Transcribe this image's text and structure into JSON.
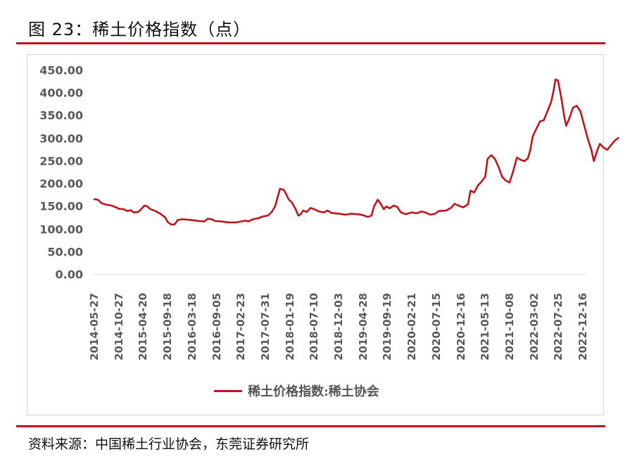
{
  "header": {
    "title": "图 23：稀土价格指数（点）"
  },
  "footer": {
    "source": "资料来源：中国稀土行业协会，东莞证券研究所"
  },
  "colors": {
    "accent_rule": "#c0141c",
    "series_line": "#c0141c",
    "axis_text": "#595959",
    "frame_border": "#d6d6d6"
  },
  "chart_data": {
    "type": "line",
    "title": "图 23：稀土价格指数（点）",
    "xlabel": "",
    "ylabel": "",
    "ylim": [
      0,
      450
    ],
    "grid": false,
    "legend_position": "bottom",
    "y_ticks": [
      "0.00",
      "50.00",
      "100.00",
      "150.00",
      "200.00",
      "250.00",
      "300.00",
      "350.00",
      "400.00",
      "450.00"
    ],
    "x_tick_labels": [
      "2014-05-27",
      "2014-10-27",
      "2015-04-20",
      "2015-09-18",
      "2016-03-18",
      "2016-09-05",
      "2017-02-23",
      "2017-07-31",
      "2018-01-19",
      "2018-07-10",
      "2018-12-03",
      "2019-04-28",
      "2019-09-19",
      "2020-02-21",
      "2020-07-15",
      "2020-12-16",
      "2021-05-13",
      "2021-10-08",
      "2022-03-02",
      "2022-07-25",
      "2022-12-16"
    ],
    "series": [
      {
        "name": "稀土价格指数:稀土协会",
        "color": "#c0141c",
        "points": [
          {
            "x": 0.0,
            "y": 166
          },
          {
            "x": 0.15,
            "y": 165
          },
          {
            "x": 0.3,
            "y": 157
          },
          {
            "x": 0.5,
            "y": 154
          },
          {
            "x": 0.7,
            "y": 152
          },
          {
            "x": 0.9,
            "y": 148
          },
          {
            "x": 1.0,
            "y": 145
          },
          {
            "x": 1.2,
            "y": 144
          },
          {
            "x": 1.35,
            "y": 140
          },
          {
            "x": 1.5,
            "y": 142
          },
          {
            "x": 1.6,
            "y": 137
          },
          {
            "x": 1.8,
            "y": 138
          },
          {
            "x": 1.95,
            "y": 146
          },
          {
            "x": 2.05,
            "y": 152
          },
          {
            "x": 2.15,
            "y": 151
          },
          {
            "x": 2.3,
            "y": 144
          },
          {
            "x": 2.5,
            "y": 140
          },
          {
            "x": 2.7,
            "y": 134
          },
          {
            "x": 2.9,
            "y": 126
          },
          {
            "x": 3.0,
            "y": 116
          },
          {
            "x": 3.15,
            "y": 110
          },
          {
            "x": 3.3,
            "y": 111
          },
          {
            "x": 3.4,
            "y": 120
          },
          {
            "x": 3.6,
            "y": 122
          },
          {
            "x": 3.8,
            "y": 121
          },
          {
            "x": 4.0,
            "y": 120
          },
          {
            "x": 4.3,
            "y": 118
          },
          {
            "x": 4.5,
            "y": 117
          },
          {
            "x": 4.65,
            "y": 123
          },
          {
            "x": 4.8,
            "y": 122
          },
          {
            "x": 4.95,
            "y": 118
          },
          {
            "x": 5.2,
            "y": 117
          },
          {
            "x": 5.5,
            "y": 115
          },
          {
            "x": 5.8,
            "y": 115
          },
          {
            "x": 6.0,
            "y": 117
          },
          {
            "x": 6.2,
            "y": 119
          },
          {
            "x": 6.3,
            "y": 117
          },
          {
            "x": 6.5,
            "y": 122
          },
          {
            "x": 6.7,
            "y": 124
          },
          {
            "x": 6.9,
            "y": 128
          },
          {
            "x": 7.1,
            "y": 130
          },
          {
            "x": 7.25,
            "y": 137
          },
          {
            "x": 7.4,
            "y": 150
          },
          {
            "x": 7.5,
            "y": 170
          },
          {
            "x": 7.6,
            "y": 189
          },
          {
            "x": 7.75,
            "y": 187
          },
          {
            "x": 7.85,
            "y": 178
          },
          {
            "x": 7.95,
            "y": 166
          },
          {
            "x": 8.1,
            "y": 158
          },
          {
            "x": 8.25,
            "y": 143
          },
          {
            "x": 8.35,
            "y": 130
          },
          {
            "x": 8.45,
            "y": 133
          },
          {
            "x": 8.55,
            "y": 141
          },
          {
            "x": 8.7,
            "y": 138
          },
          {
            "x": 8.85,
            "y": 147
          },
          {
            "x": 9.0,
            "y": 144
          },
          {
            "x": 9.2,
            "y": 139
          },
          {
            "x": 9.4,
            "y": 137
          },
          {
            "x": 9.55,
            "y": 141
          },
          {
            "x": 9.7,
            "y": 136
          },
          {
            "x": 10.0,
            "y": 134
          },
          {
            "x": 10.3,
            "y": 132
          },
          {
            "x": 10.5,
            "y": 134
          },
          {
            "x": 10.8,
            "y": 133
          },
          {
            "x": 11.0,
            "y": 131
          },
          {
            "x": 11.2,
            "y": 127
          },
          {
            "x": 11.35,
            "y": 130
          },
          {
            "x": 11.45,
            "y": 150
          },
          {
            "x": 11.6,
            "y": 165
          },
          {
            "x": 11.7,
            "y": 158
          },
          {
            "x": 11.85,
            "y": 144
          },
          {
            "x": 11.95,
            "y": 150
          },
          {
            "x": 12.1,
            "y": 146
          },
          {
            "x": 12.25,
            "y": 152
          },
          {
            "x": 12.4,
            "y": 149
          },
          {
            "x": 12.55,
            "y": 137
          },
          {
            "x": 12.75,
            "y": 133
          },
          {
            "x": 13.0,
            "y": 137
          },
          {
            "x": 13.2,
            "y": 135
          },
          {
            "x": 13.4,
            "y": 139
          },
          {
            "x": 13.55,
            "y": 137
          },
          {
            "x": 13.75,
            "y": 132
          },
          {
            "x": 13.95,
            "y": 134
          },
          {
            "x": 14.1,
            "y": 140
          },
          {
            "x": 14.4,
            "y": 141
          },
          {
            "x": 14.6,
            "y": 147
          },
          {
            "x": 14.75,
            "y": 156
          },
          {
            "x": 14.95,
            "y": 151
          },
          {
            "x": 15.1,
            "y": 148
          },
          {
            "x": 15.3,
            "y": 155
          },
          {
            "x": 15.4,
            "y": 185
          },
          {
            "x": 15.55,
            "y": 181
          },
          {
            "x": 15.7,
            "y": 196
          },
          {
            "x": 15.85,
            "y": 205
          },
          {
            "x": 16.0,
            "y": 215
          },
          {
            "x": 16.1,
            "y": 255
          },
          {
            "x": 16.25,
            "y": 263
          },
          {
            "x": 16.4,
            "y": 255
          },
          {
            "x": 16.55,
            "y": 237
          },
          {
            "x": 16.7,
            "y": 215
          },
          {
            "x": 16.85,
            "y": 207
          },
          {
            "x": 17.0,
            "y": 203
          },
          {
            "x": 17.15,
            "y": 228
          },
          {
            "x": 17.3,
            "y": 258
          },
          {
            "x": 17.45,
            "y": 253
          },
          {
            "x": 17.6,
            "y": 250
          },
          {
            "x": 17.75,
            "y": 256
          },
          {
            "x": 17.85,
            "y": 275
          },
          {
            "x": 17.95,
            "y": 305
          },
          {
            "x": 18.1,
            "y": 322
          },
          {
            "x": 18.25,
            "y": 338
          },
          {
            "x": 18.4,
            "y": 340
          },
          {
            "x": 18.55,
            "y": 360
          },
          {
            "x": 18.7,
            "y": 380
          },
          {
            "x": 18.8,
            "y": 405
          },
          {
            "x": 18.88,
            "y": 430
          },
          {
            "x": 18.98,
            "y": 428
          },
          {
            "x": 19.1,
            "y": 395
          },
          {
            "x": 19.25,
            "y": 345
          },
          {
            "x": 19.32,
            "y": 328
          },
          {
            "x": 19.45,
            "y": 345
          },
          {
            "x": 19.6,
            "y": 368
          },
          {
            "x": 19.75,
            "y": 372
          },
          {
            "x": 19.9,
            "y": 360
          },
          {
            "x": 20.05,
            "y": 330
          },
          {
            "x": 20.2,
            "y": 300
          },
          {
            "x": 20.35,
            "y": 275
          },
          {
            "x": 20.45,
            "y": 250
          },
          {
            "x": 20.6,
            "y": 275
          },
          {
            "x": 20.7,
            "y": 288
          },
          {
            "x": 20.85,
            "y": 280
          },
          {
            "x": 21.0,
            "y": 275
          },
          {
            "x": 21.15,
            "y": 285
          },
          {
            "x": 21.3,
            "y": 295
          },
          {
            "x": 21.45,
            "y": 301
          }
        ]
      }
    ]
  }
}
